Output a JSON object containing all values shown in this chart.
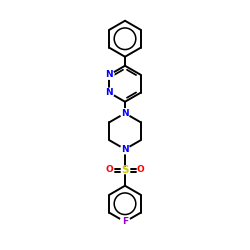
{
  "background": "#ffffff",
  "bond_color": "#000000",
  "N_color": "#0000ff",
  "O_color": "#ff0000",
  "F_color": "#9900cc",
  "S_color": "#cccc00",
  "figsize": [
    2.5,
    2.5
  ],
  "dpi": 100,
  "xlim": [
    0,
    10
  ],
  "ylim": [
    0,
    10
  ]
}
